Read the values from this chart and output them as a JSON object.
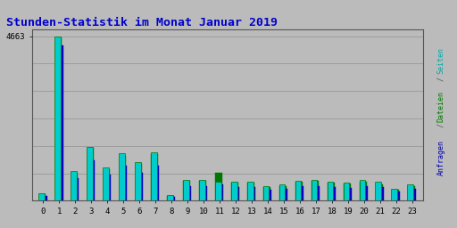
{
  "title": "Stunden-Statistik im Monat Januar 2019",
  "title_color": "#0000CC",
  "background_color": "#BBBBBB",
  "plot_bg_color": "#BBBBBB",
  "hours": [
    0,
    1,
    2,
    3,
    4,
    5,
    6,
    7,
    8,
    9,
    10,
    11,
    12,
    13,
    14,
    15,
    16,
    17,
    18,
    19,
    20,
    21,
    22,
    23
  ],
  "pages": [
    200,
    4663,
    850,
    1530,
    950,
    1350,
    1100,
    1380,
    160,
    590,
    600,
    540,
    530,
    540,
    410,
    450,
    570,
    600,
    550,
    520,
    580,
    550,
    340,
    450
  ],
  "files": [
    175,
    4620,
    800,
    1490,
    900,
    1280,
    1050,
    1320,
    145,
    555,
    565,
    780,
    500,
    510,
    385,
    400,
    530,
    560,
    510,
    480,
    545,
    460,
    320,
    420
  ],
  "requests": [
    130,
    4400,
    650,
    1150,
    750,
    1000,
    800,
    1000,
    120,
    400,
    420,
    450,
    380,
    385,
    305,
    330,
    400,
    420,
    380,
    350,
    400,
    380,
    260,
    330
  ],
  "ymax": 4663,
  "ytick_val": 4663,
  "bar_width": 0.38,
  "cyan_color": "#00CCCC",
  "green_color": "#007700",
  "blue_color": "#0000BB",
  "grid_color": "#999999",
  "border_color": "#555555",
  "num_gridlines": 6
}
